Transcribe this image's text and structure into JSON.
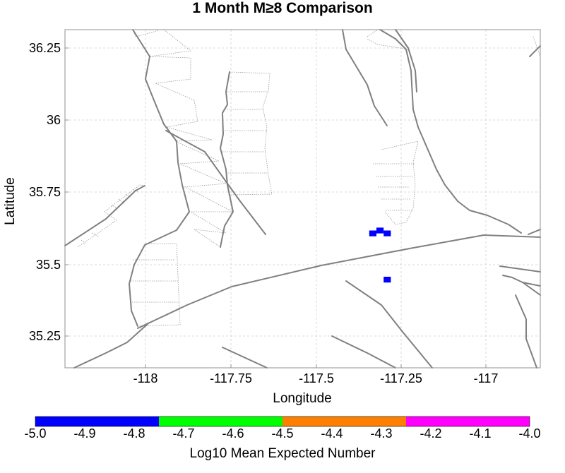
{
  "title": "1 Month M≥8 Comparison",
  "map": {
    "xlabel": "Longitude",
    "ylabel": "Latitude",
    "lon_range": [
      -118.28,
      -116.96
    ],
    "lat_range": [
      35.14,
      36.31
    ],
    "lon_ticks": [
      "-118",
      "-117.75",
      "-117.5",
      "-117.25",
      "-117"
    ],
    "lat_ticks": [
      "36.25",
      "36",
      "35.75",
      "35.5",
      "35.25"
    ],
    "grid": "dashed-light",
    "fault_color": "#808080",
    "cells": [
      {
        "lon": -117.425,
        "lat": 35.605,
        "value": -4.95
      },
      {
        "lon": -117.405,
        "lat": 35.615,
        "value": -4.95
      },
      {
        "lon": -117.385,
        "lat": 35.605,
        "value": -4.95
      },
      {
        "lon": -117.385,
        "lat": 35.445,
        "value": -4.95
      }
    ]
  },
  "colorbar": {
    "label": "Log10 Mean Expected Number",
    "ticks": [
      "-5.0",
      "-4.9",
      "-4.8",
      "-4.7",
      "-4.6",
      "-4.5",
      "-4.4",
      "-4.3",
      "-4.2",
      "-4.1",
      "-4.0"
    ],
    "range": [
      -5.0,
      -4.0
    ],
    "segments": [
      {
        "from": -5.0,
        "to": -4.75,
        "color": "#0000ff"
      },
      {
        "from": -4.75,
        "to": -4.5,
        "color": "#00ff00"
      },
      {
        "from": -4.5,
        "to": -4.25,
        "color": "#ff8000"
      },
      {
        "from": -4.25,
        "to": -4.0,
        "color": "#ff00ff"
      }
    ]
  }
}
